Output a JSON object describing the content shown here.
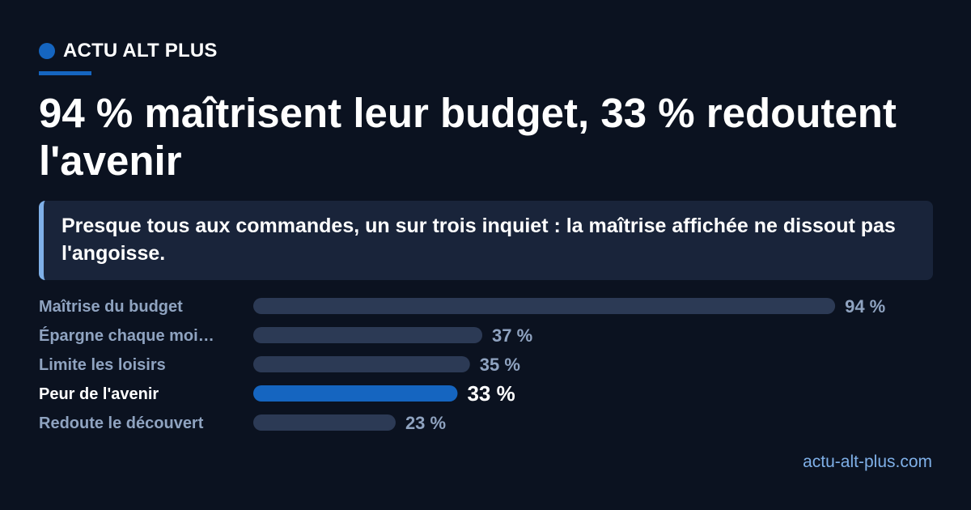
{
  "brand": {
    "name": "ACTU ALT PLUS"
  },
  "headline": "94 % maîtrisent leur budget, 33 % redoutent l'avenir",
  "subtitle": "Presque tous aux commandes, un sur trois inquiet : la maîtrise affichée ne dissout pas l'angoisse.",
  "footer": {
    "site": "actu-alt-plus.com"
  },
  "chart_data": {
    "type": "bar",
    "orientation": "horizontal",
    "categories": [
      "Maîtrise du budget",
      "Épargne chaque moi…",
      "Limite les loisirs",
      "Peur de l'avenir",
      "Redoute le découvert"
    ],
    "values": [
      94,
      37,
      35,
      33,
      23
    ],
    "value_labels": [
      "94 %",
      "37 %",
      "35 %",
      "33 %",
      "23 %"
    ],
    "highlight": "Peur de l'avenir",
    "xlim": [
      0,
      100
    ],
    "colors": {
      "bar": "#2c3a55",
      "highlight_bar": "#1565c0",
      "label": "#8fa3c0",
      "highlight_label": "#ffffff"
    }
  }
}
